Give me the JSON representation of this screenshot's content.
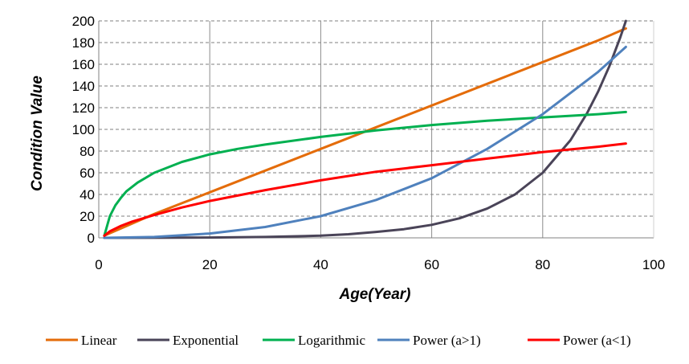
{
  "chart_data": {
    "type": "line",
    "title": "",
    "xlabel": "Age(Year)",
    "ylabel": "Condition Value",
    "xlim": [
      0,
      100
    ],
    "ylim": [
      0,
      200
    ],
    "xticks": [
      0,
      20,
      40,
      60,
      80,
      100
    ],
    "yticks": [
      0,
      20,
      40,
      60,
      80,
      100,
      120,
      140,
      160,
      180,
      200
    ],
    "grid": true,
    "legend": "bottom",
    "series": [
      {
        "name": "Linear",
        "color": "#E46C0A",
        "x": [
          1,
          10,
          20,
          30,
          40,
          50,
          60,
          70,
          80,
          90,
          95
        ],
        "y": [
          2,
          22,
          42,
          62,
          82,
          102,
          122,
          142,
          162,
          182,
          193
        ]
      },
      {
        "name": "Exponential",
        "color": "#4A4458",
        "x": [
          1,
          10,
          20,
          30,
          40,
          45,
          50,
          55,
          60,
          65,
          70,
          75,
          80,
          85,
          88,
          90,
          92,
          94,
          95
        ],
        "y": [
          0,
          0.1,
          0.3,
          0.8,
          2,
          3.3,
          5.5,
          8,
          12,
          18,
          27,
          40,
          60,
          90,
          115,
          135,
          158,
          185,
          200
        ]
      },
      {
        "name": "Logarithmic",
        "color": "#00B050",
        "x": [
          1,
          2,
          3,
          4,
          5,
          7,
          10,
          15,
          20,
          25,
          30,
          40,
          50,
          60,
          70,
          80,
          90,
          95
        ],
        "y": [
          2,
          20,
          30,
          37,
          43,
          51,
          60,
          70,
          77,
          82,
          86,
          93,
          99,
          104,
          108,
          111,
          114,
          116
        ]
      },
      {
        "name": "Power (a>1)",
        "color": "#4F81BD",
        "x": [
          1,
          10,
          20,
          30,
          40,
          50,
          60,
          70,
          80,
          90,
          95
        ],
        "y": [
          0,
          0.8,
          4,
          10,
          20,
          35,
          55,
          82,
          114,
          153,
          176
        ]
      },
      {
        "name": "Power (a<1)",
        "color": "#FF0000",
        "x": [
          1,
          2,
          4,
          6,
          8,
          10,
          15,
          20,
          30,
          40,
          50,
          60,
          70,
          80,
          90,
          95
        ],
        "y": [
          2,
          6,
          11,
          15,
          18,
          21,
          28,
          34,
          44,
          53,
          61,
          67,
          73,
          79,
          84,
          87
        ]
      }
    ]
  }
}
